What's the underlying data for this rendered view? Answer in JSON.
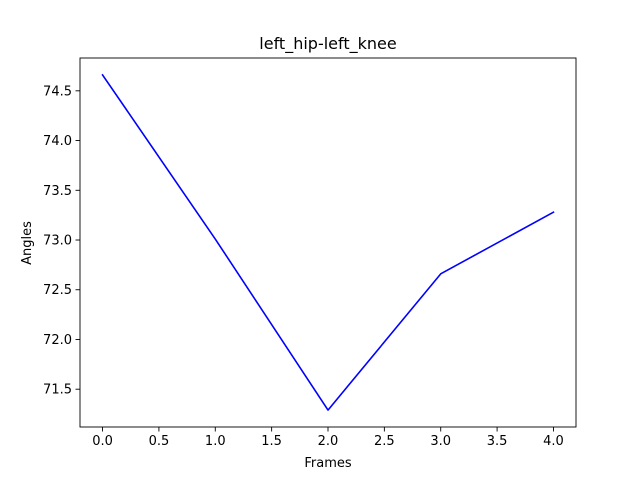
{
  "chart_data": {
    "type": "line",
    "title": "left_hip-left_knee",
    "xlabel": "Frames",
    "ylabel": "Angles",
    "x": [
      0,
      1,
      2,
      3,
      4
    ],
    "series": [
      {
        "values": [
          74.66,
          73.01,
          71.29,
          72.66,
          73.28
        ],
        "color": "#0000ff"
      }
    ],
    "xlim": [
      -0.2,
      4.2
    ],
    "ylim": [
      71.12,
      74.83
    ],
    "xticks": [
      0.0,
      0.5,
      1.0,
      1.5,
      2.0,
      2.5,
      3.0,
      3.5,
      4.0
    ],
    "xtick_labels": [
      "0.0",
      "0.5",
      "1.0",
      "1.5",
      "2.0",
      "2.5",
      "3.0",
      "3.5",
      "4.0"
    ],
    "yticks": [
      71.5,
      72.0,
      72.5,
      73.0,
      73.5,
      74.0,
      74.5
    ],
    "ytick_labels": [
      "71.5",
      "72.0",
      "72.5",
      "73.0",
      "73.5",
      "74.0",
      "74.5"
    ],
    "grid": false,
    "legend": false
  }
}
